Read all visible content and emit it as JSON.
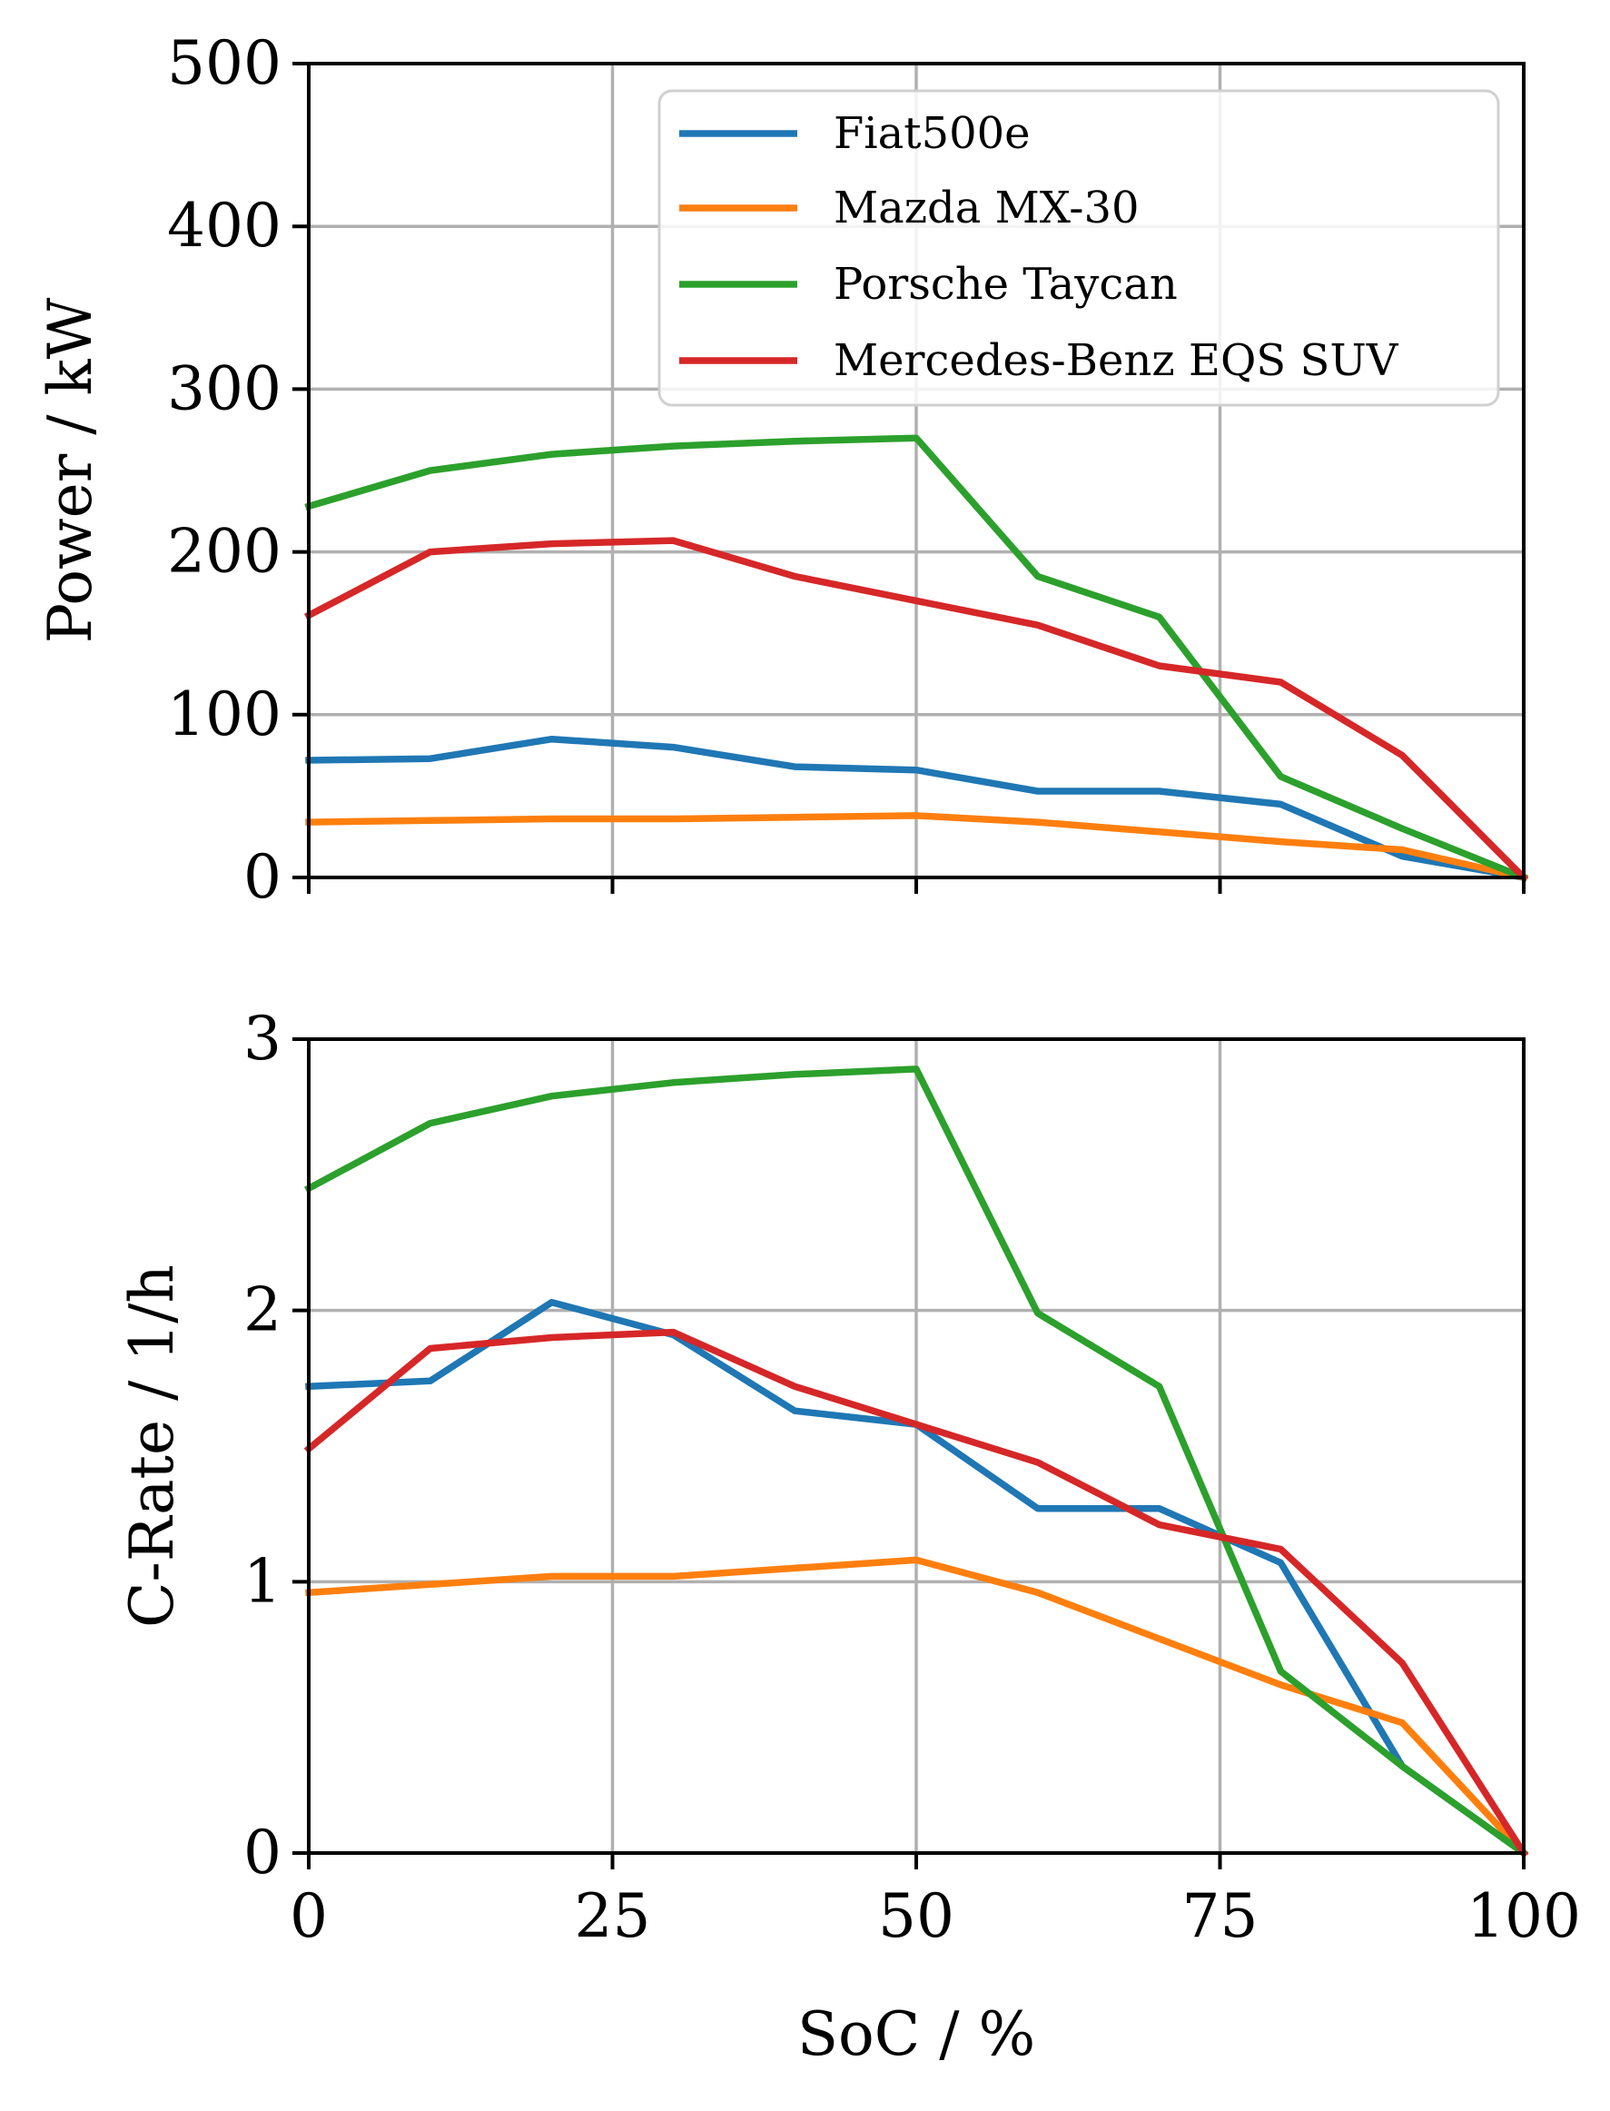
{
  "chart_data": [
    {
      "type": "line",
      "title": "",
      "xlabel": "",
      "ylabel": "Power / kW",
      "xlim": [
        0,
        100
      ],
      "ylim": [
        0,
        500
      ],
      "x_ticks": [
        "",
        "",
        "",
        "",
        ""
      ],
      "y_ticks": [
        "0",
        "100",
        "200",
        "300",
        "400",
        "500"
      ],
      "grid": true,
      "legend": "top-right",
      "x": [
        0,
        10,
        20,
        30,
        40,
        50,
        60,
        70,
        80,
        90,
        100
      ],
      "series": [
        {
          "name": "Fiat500e",
          "color": "#1f77b4",
          "values": [
            72,
            73,
            85,
            80,
            68,
            66,
            53,
            53,
            45,
            13,
            0
          ]
        },
        {
          "name": "Mazda MX-30",
          "color": "#ff7f0e",
          "values": [
            34,
            35,
            36,
            36,
            37,
            38,
            34,
            28,
            22,
            17,
            0
          ]
        },
        {
          "name": "Porsche Taycan",
          "color": "#2ca02c",
          "values": [
            228,
            250,
            260,
            265,
            268,
            270,
            185,
            160,
            62,
            30,
            0
          ]
        },
        {
          "name": "Mercedes-Benz EQS SUV",
          "color": "#d62728",
          "values": [
            161,
            200,
            205,
            207,
            185,
            170,
            155,
            130,
            120,
            75,
            0
          ]
        }
      ]
    },
    {
      "type": "line",
      "title": "",
      "xlabel": "SoC / %",
      "ylabel": "C-Rate / 1/h",
      "xlim": [
        0,
        100
      ],
      "ylim": [
        0,
        3
      ],
      "x_ticks": [
        "0",
        "25",
        "50",
        "75",
        "100"
      ],
      "y_ticks": [
        "0",
        "1",
        "2",
        "3"
      ],
      "grid": true,
      "x": [
        0,
        10,
        20,
        30,
        40,
        50,
        60,
        70,
        80,
        90,
        100
      ],
      "series": [
        {
          "name": "Fiat500e",
          "color": "#1f77b4",
          "values": [
            1.72,
            1.74,
            2.03,
            1.91,
            1.63,
            1.58,
            1.27,
            1.27,
            1.07,
            0.32,
            0
          ]
        },
        {
          "name": "Mazda MX-30",
          "color": "#ff7f0e",
          "values": [
            0.96,
            0.99,
            1.02,
            1.02,
            1.05,
            1.08,
            0.96,
            0.79,
            0.62,
            0.48,
            0
          ]
        },
        {
          "name": "Porsche Taycan",
          "color": "#2ca02c",
          "values": [
            2.45,
            2.69,
            2.79,
            2.84,
            2.87,
            2.89,
            1.99,
            1.72,
            0.67,
            0.32,
            0
          ]
        },
        {
          "name": "Mercedes-Benz EQS SUV",
          "color": "#d62728",
          "values": [
            1.49,
            1.86,
            1.9,
            1.92,
            1.72,
            1.58,
            1.44,
            1.21,
            1.12,
            0.7,
            0
          ]
        }
      ]
    }
  ]
}
